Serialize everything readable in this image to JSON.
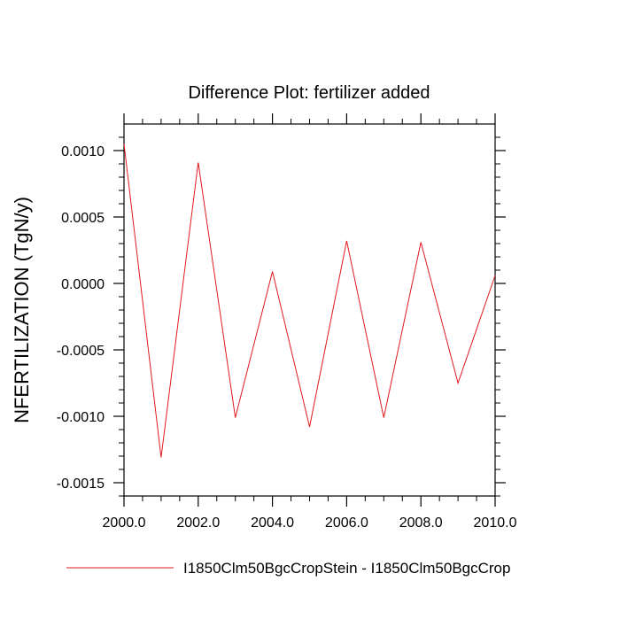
{
  "chart_data": {
    "type": "line",
    "title": "Difference Plot: fertilizer added",
    "xlabel": "",
    "ylabel": "NFERTILIZATION  (TgN/y)",
    "xlim": [
      2000,
      2010
    ],
    "ylim": [
      -0.0016,
      0.0012
    ],
    "xticks": [
      2000,
      2002,
      2004,
      2006,
      2008,
      2010
    ],
    "xtick_labels": [
      "2000.0",
      "2002.0",
      "2004.0",
      "2006.0",
      "2008.0",
      "2010.0"
    ],
    "yticks": [
      0.001,
      0.0005,
      0.0,
      -0.0005,
      -0.001,
      -0.0015
    ],
    "ytick_labels": [
      "0.0010",
      "0.0005",
      "0.0000",
      "-0.0005",
      "-0.0010",
      "-0.0015"
    ],
    "grid": false,
    "legend_position": "bottom",
    "x": [
      2000,
      2001,
      2002,
      2003,
      2004,
      2005,
      2006,
      2007,
      2008,
      2009,
      2010
    ],
    "series": [
      {
        "name": "I1850Clm50BgcCropStein - I1850Clm50BgcCrop",
        "color": "#e0191e",
        "values": [
          0.00105,
          -0.00131,
          0.00091,
          -0.00101,
          9e-05,
          -0.00108,
          0.00032,
          -0.00101,
          0.00031,
          -0.00075,
          6e-05
        ]
      }
    ]
  }
}
